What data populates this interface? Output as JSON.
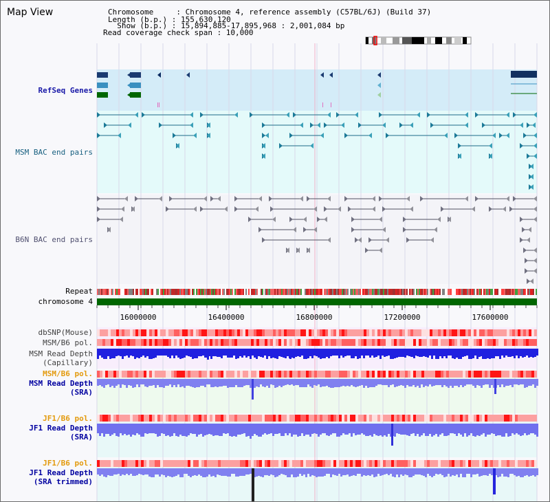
{
  "title": "Map View",
  "header": {
    "lines": [
      "Chromosome     : Chromosome 4, reference assembly (C57BL/6J) (Build 37)",
      "Length (b.p.) : 155,630,120",
      "  Show (b.p.) : 15,894,885-17,895,968 : 2,001,084 bp",
      "Read coverage check span : 10,000"
    ]
  },
  "tracks": {
    "refseq": "RefSeq Genes",
    "msm_bac": "MSM BAC end pairs",
    "b6n_bac": "B6N BAC end pairs",
    "repeat": "Repeat",
    "chromosome": "chromosome 4",
    "dbsnp": "dbSNP(Mouse)",
    "msm_pol": "MSM/B6 pol.",
    "msm_depth_cap_1": "MSM Read Depth",
    "msm_depth_cap_2": "(Capillary)",
    "msm_pol2": "MSM/B6 pol.",
    "msm_depth_sra_1": "MSM Read Depth",
    "msm_depth_sra_2": "(SRA)",
    "jf1_pol": "JF1/B6 pol.",
    "jf1_depth_sra_1": "JF1 Read Depth",
    "jf1_depth_sra_2": "(SRA)",
    "jf1_pol2": "JF1/B6 pol.",
    "jf1_depth_trim_1": "JF1 Read Depth",
    "jf1_depth_trim_2": "(SRA trimmed)"
  },
  "axis": {
    "start_bp": 15894885,
    "end_bp": 17895968,
    "ticks": [
      "16000000",
      "16400000",
      "16800000",
      "17200000",
      "17600000"
    ],
    "tick_values": [
      16000000,
      16400000,
      16800000,
      17200000,
      17600000
    ]
  },
  "colors": {
    "refseq_band": "#d4ecf8",
    "bac_band": "#e4fafa",
    "chromosome_bar": "#006600",
    "depth_bar": "#2525dd",
    "depth_bar_light": "#8080f0",
    "pol_high": "#ff2020",
    "pol_low": "#fdd6d6"
  }
}
